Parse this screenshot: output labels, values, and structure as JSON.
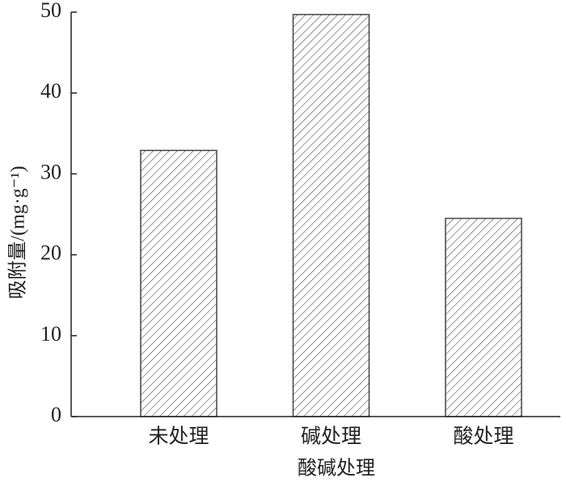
{
  "chart_data": {
    "type": "bar",
    "x_label": "酸碱处理",
    "y_label": "吸附量/(mg·g⁻¹)",
    "categories": [
      "未处理",
      "碱处理",
      "酸处理"
    ],
    "values": [
      32.9,
      49.7,
      24.5
    ],
    "color": "#444444",
    "ylim": [
      0,
      50
    ],
    "yticks": [
      0,
      10,
      20,
      30,
      40,
      50
    ],
    "grid": false
  }
}
